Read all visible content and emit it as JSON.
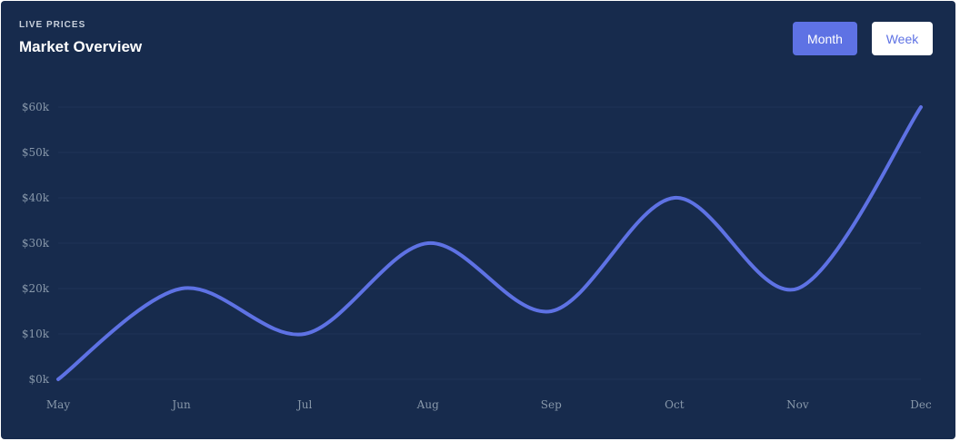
{
  "header": {
    "kicker": "LIVE PRICES",
    "title": "Market Overview"
  },
  "toggles": {
    "month_label": "Month",
    "week_label": "Week",
    "active": "Month"
  },
  "colors": {
    "card_background": "#172b4d",
    "line": "#5e72e4",
    "gridline": "#1f3357",
    "tick_label": "#8898aa",
    "button_active_bg": "#5e72e4",
    "button_inactive_bg": "#ffffff"
  },
  "chart_data": {
    "type": "line",
    "title": "",
    "xlabel": "",
    "ylabel": "",
    "categories": [
      "May",
      "Jun",
      "Jul",
      "Aug",
      "Sep",
      "Oct",
      "Nov",
      "Dec"
    ],
    "series": [
      {
        "values": [
          0,
          20,
          10,
          30,
          15,
          40,
          20,
          60
        ]
      }
    ],
    "y_ticks": [
      "$0k",
      "$10k",
      "$20k",
      "$30k",
      "$40k",
      "$50k",
      "$60k"
    ],
    "y_tick_values": [
      0,
      10,
      20,
      30,
      40,
      50,
      60
    ],
    "ylim": [
      0,
      60
    ],
    "y_unit": "$k",
    "smooth": true,
    "grid": "horizontal",
    "legend": "none"
  }
}
